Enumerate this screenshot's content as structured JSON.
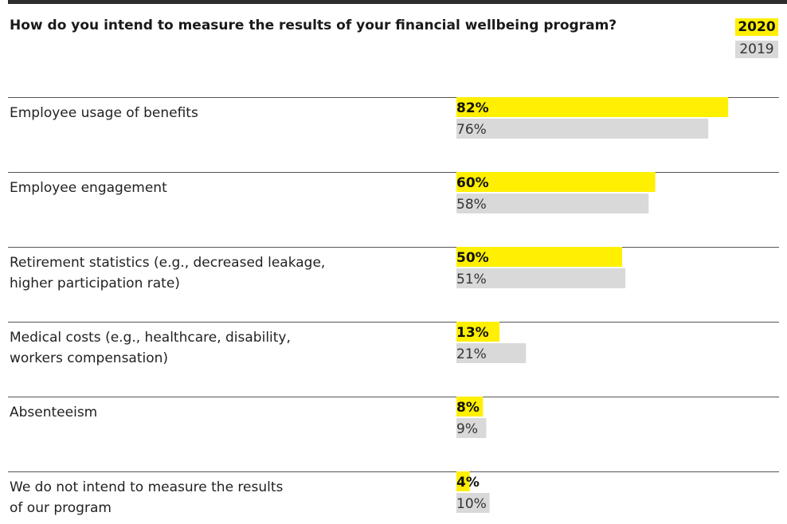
{
  "title": "How do you intend to measure the results of your financial wellbeing program?",
  "legend": {
    "current": "2020",
    "previous": "2019"
  },
  "colors": {
    "current": "#ffef00",
    "previous": "#d9d9d9",
    "rule": "#555555",
    "text": "#222222"
  },
  "chart_data": {
    "type": "bar",
    "orientation": "horizontal",
    "title": "How do you intend to measure the results of your financial wellbeing program?",
    "categories": [
      [
        "Employee usage of benefits"
      ],
      [
        "Employee engagement"
      ],
      [
        "Retirement statistics (e.g., decreased leakage,",
        "higher participation rate)"
      ],
      [
        "Medical costs (e.g., healthcare, disability,",
        "workers compensation)"
      ],
      [
        "Absenteeism"
      ],
      [
        "We do not intend to measure the results",
        "of our program"
      ]
    ],
    "series": [
      {
        "name": "2020",
        "values": [
          82,
          60,
          50,
          13,
          8,
          4
        ]
      },
      {
        "name": "2019",
        "values": [
          76,
          58,
          51,
          21,
          9,
          10
        ]
      }
    ],
    "value_suffix": "%",
    "xlim": [
      0,
      100
    ],
    "legend": "top-right"
  }
}
